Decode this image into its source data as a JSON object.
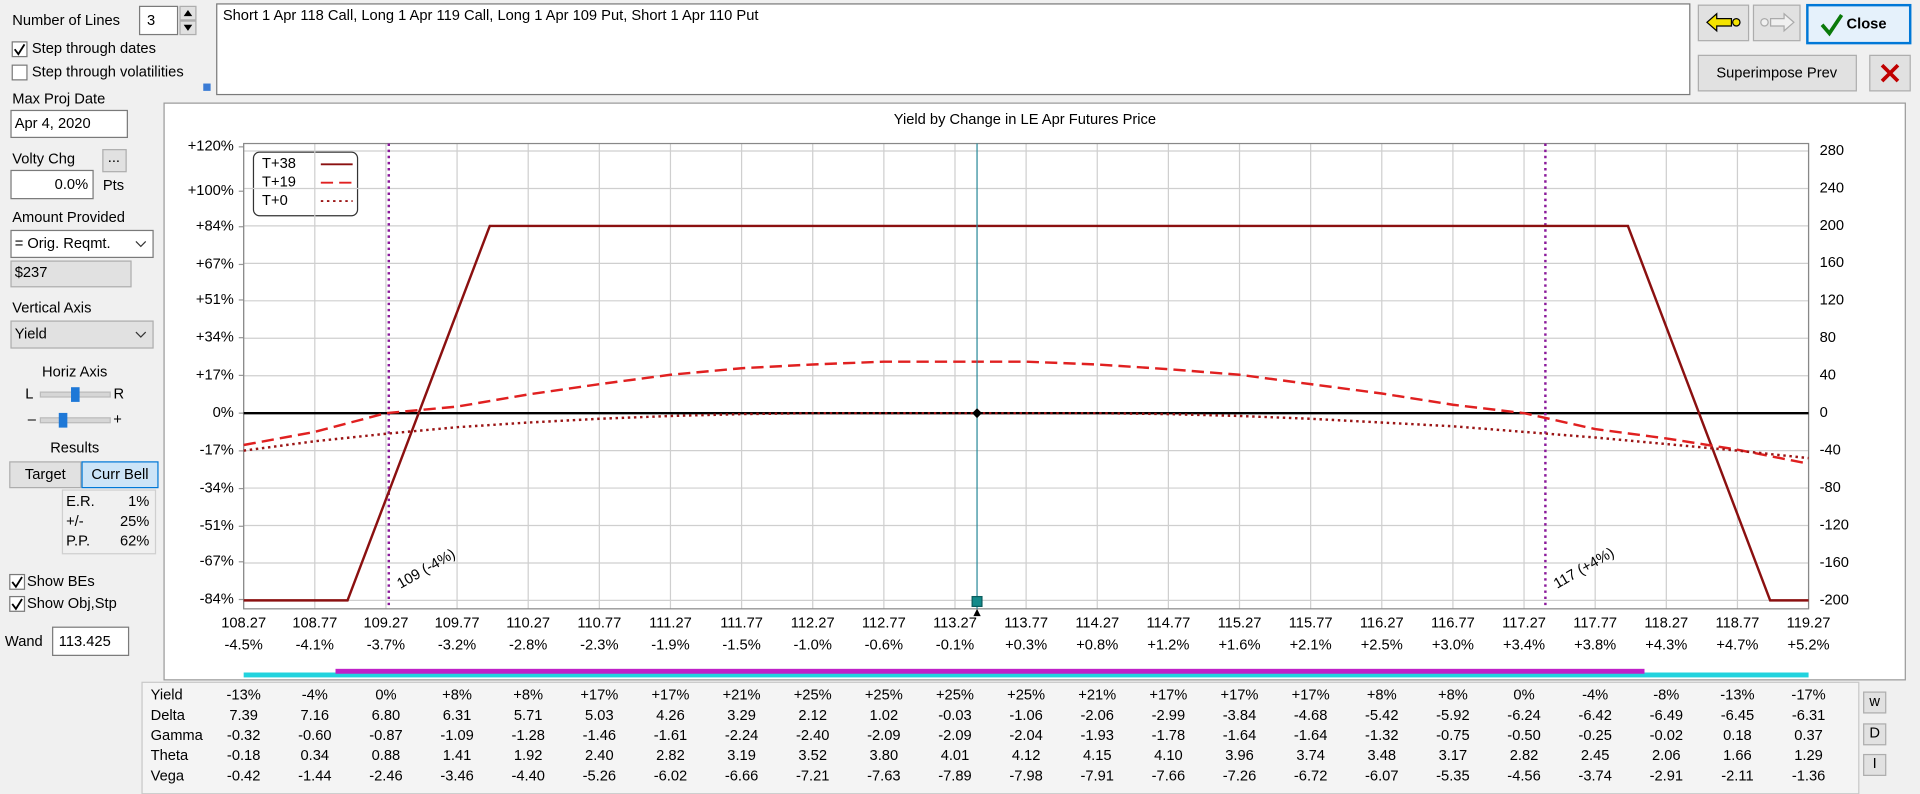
{
  "controls": {
    "number_of_lines_label": "Number of Lines",
    "number_of_lines": "3",
    "step_dates": "Step through dates",
    "step_vols": "Step through volatilities",
    "max_proj_date_label": "Max Proj Date",
    "max_proj_date": "Apr 4, 2020",
    "volty_chg_label": "Volty Chg",
    "volty_button": "...",
    "volty_chg": "0.0%",
    "volty_unit": "Pts",
    "amount_label": "Amount Provided",
    "amount_mode": "= Orig. Reqmt.",
    "amount": "$237",
    "vertical_axis_label": "Vertical Axis",
    "vertical_axis": "Yield",
    "horiz_axis_label": "Horiz Axis",
    "horiz_left": "L",
    "horiz_right": "R",
    "zoom_out": "–",
    "zoom_in": "+",
    "results_label": "Results",
    "target_button": "Target",
    "curr_bell_button": "Curr Bell",
    "results": [
      [
        "E.R.",
        "1%"
      ],
      [
        "+/-",
        "25%"
      ],
      [
        "P.P.",
        "62%"
      ]
    ],
    "show_bes": "Show BEs",
    "show_obj": "Show Obj,Stp",
    "wand_label": "Wand"
  },
  "positions_text": "Short 1 Apr 118 Call, Long 1 Apr 119 Call, Long 1 Apr 109 Put, Short 1 Apr 110 Put",
  "buttons": {
    "close": "Close",
    "superimpose": "Superimpose Prev"
  },
  "chart_data": {
    "type": "line",
    "title": "Yield by Change in LE Apr Futures Price",
    "xlim": [
      108.27,
      119.27
    ],
    "xticks": [
      108.27,
      108.77,
      109.27,
      109.77,
      110.27,
      110.77,
      111.27,
      111.77,
      112.27,
      112.77,
      113.27,
      113.77,
      114.27,
      114.77,
      115.27,
      115.77,
      116.27,
      116.77,
      117.27,
      117.77,
      118.27,
      118.77,
      119.27
    ],
    "x_change_labels": [
      "-4.5%",
      "-4.1%",
      "-3.7%",
      "-3.2%",
      "-2.8%",
      "-2.3%",
      "-1.9%",
      "-1.5%",
      "-1.0%",
      "-0.6%",
      "-0.1%",
      "+0.3%",
      "+0.8%",
      "+1.2%",
      "+1.6%",
      "+2.1%",
      "+2.5%",
      "+3.0%",
      "+3.4%",
      "+3.8%",
      "+4.3%",
      "+4.7%",
      "+5.2%"
    ],
    "ylim": [
      -88.2,
      121.5
    ],
    "yticks": [
      {
        "value": 120,
        "label": "+120%"
      },
      {
        "value": 100,
        "label": "+100%"
      },
      {
        "value": 84,
        "label": "+84%"
      },
      {
        "value": 67,
        "label": "+67%"
      },
      {
        "value": 51,
        "label": "+51%"
      },
      {
        "value": 34,
        "label": "+34%"
      },
      {
        "value": 17,
        "label": "+17%"
      },
      {
        "value": 0,
        "label": "0%"
      },
      {
        "value": -17,
        "label": "-17%"
      },
      {
        "value": -34,
        "label": "-34%"
      },
      {
        "value": -51,
        "label": "-51%"
      },
      {
        "value": -67,
        "label": "-67%"
      },
      {
        "value": -84,
        "label": "-84%"
      }
    ],
    "y2lim": [
      -209,
      288
    ],
    "y2ticks": [
      280,
      240,
      200,
      160,
      120,
      80,
      40,
      0,
      -40,
      -80,
      -120,
      -160,
      -200
    ],
    "grid": true,
    "legend": "upper left",
    "series": [
      {
        "name": "T+38",
        "color": "#8b1010",
        "style": "solid",
        "axis": "y2",
        "x": [
          108.27,
          109.0,
          110.0,
          118.0,
          119.0,
          119.27
        ],
        "values": [
          -200,
          -200,
          200,
          200,
          -200,
          -200
        ]
      },
      {
        "name": "T+19",
        "color": "#e02020",
        "style": "dashed",
        "axis": "y2",
        "x": [
          108.27,
          108.77,
          109.27,
          109.77,
          110.27,
          110.77,
          111.27,
          111.77,
          112.27,
          112.77,
          113.27,
          113.77,
          114.27,
          114.77,
          115.27,
          115.77,
          116.27,
          116.77,
          117.27,
          117.77,
          118.27,
          118.77,
          119.27
        ],
        "values": [
          -34,
          -20,
          0,
          7,
          20,
          31,
          41,
          48,
          52,
          55,
          55,
          55,
          52,
          47,
          41,
          31,
          21,
          9,
          0,
          -17,
          -27,
          -39,
          -54
        ]
      },
      {
        "name": "T+0",
        "color": "#9b1515",
        "style": "dotted",
        "axis": "y2",
        "x": [
          108.27,
          108.77,
          109.27,
          109.77,
          110.27,
          110.77,
          111.27,
          111.77,
          112.27,
          112.77,
          113.27,
          113.77,
          114.27,
          114.77,
          115.27,
          115.77,
          116.27,
          116.77,
          117.27,
          117.77,
          118.27,
          118.77,
          119.27
        ],
        "values": [
          -40,
          -30,
          -22,
          -15,
          -10,
          -6,
          -3,
          -1,
          0,
          0,
          0,
          0,
          0,
          -1,
          -3,
          -6,
          -10,
          -14,
          -20,
          -26,
          -33,
          -40,
          -48
        ]
      }
    ],
    "be_lines": [
      {
        "x": 109.29,
        "label": "109 (-4%)"
      },
      {
        "x": 117.42,
        "label": "117 (+4%)"
      }
    ],
    "wand_x": 113.425
  },
  "greeks_table": {
    "rows": [
      [
        "Yield",
        "-13%",
        "-4%",
        "0%",
        "+8%",
        "+8%",
        "+17%",
        "+17%",
        "+21%",
        "+25%",
        "+25%",
        "+25%",
        "+25%",
        "+21%",
        "+17%",
        "+17%",
        "+17%",
        "+8%",
        "+8%",
        "0%",
        "-4%",
        "-8%",
        "-13%",
        "-17%"
      ],
      [
        "Delta",
        "7.39",
        "7.16",
        "6.80",
        "6.31",
        "5.71",
        "5.03",
        "4.26",
        "3.29",
        "2.12",
        "1.02",
        "-0.03",
        "-1.06",
        "-2.06",
        "-2.99",
        "-3.84",
        "-4.68",
        "-5.42",
        "-5.92",
        "-6.24",
        "-6.42",
        "-6.49",
        "-6.45",
        "-6.31"
      ],
      [
        "Gamma",
        "-0.32",
        "-0.60",
        "-0.87",
        "-1.09",
        "-1.28",
        "-1.46",
        "-1.61",
        "-2.24",
        "-2.40",
        "-2.09",
        "-2.09",
        "-2.04",
        "-1.93",
        "-1.78",
        "-1.64",
        "-1.64",
        "-1.32",
        "-0.75",
        "-0.50",
        "-0.25",
        "-0.02",
        "0.18",
        "0.37"
      ],
      [
        "Theta",
        "-0.18",
        "0.34",
        "0.88",
        "1.41",
        "1.92",
        "2.40",
        "2.82",
        "3.19",
        "3.52",
        "3.80",
        "4.01",
        "4.12",
        "4.15",
        "4.10",
        "3.96",
        "3.74",
        "3.48",
        "3.17",
        "2.82",
        "2.45",
        "2.06",
        "1.66",
        "1.29"
      ],
      [
        "Vega",
        "-0.42",
        "-1.44",
        "-2.46",
        "-3.46",
        "-4.40",
        "-5.26",
        "-6.02",
        "-6.66",
        "-7.21",
        "-7.63",
        "-7.89",
        "-7.98",
        "-7.91",
        "-7.66",
        "-7.26",
        "-6.72",
        "-6.07",
        "-5.35",
        "-4.56",
        "-3.74",
        "-2.91",
        "-2.11",
        "-1.36"
      ]
    ]
  },
  "side_buttons": [
    "w",
    "D",
    "I"
  ]
}
